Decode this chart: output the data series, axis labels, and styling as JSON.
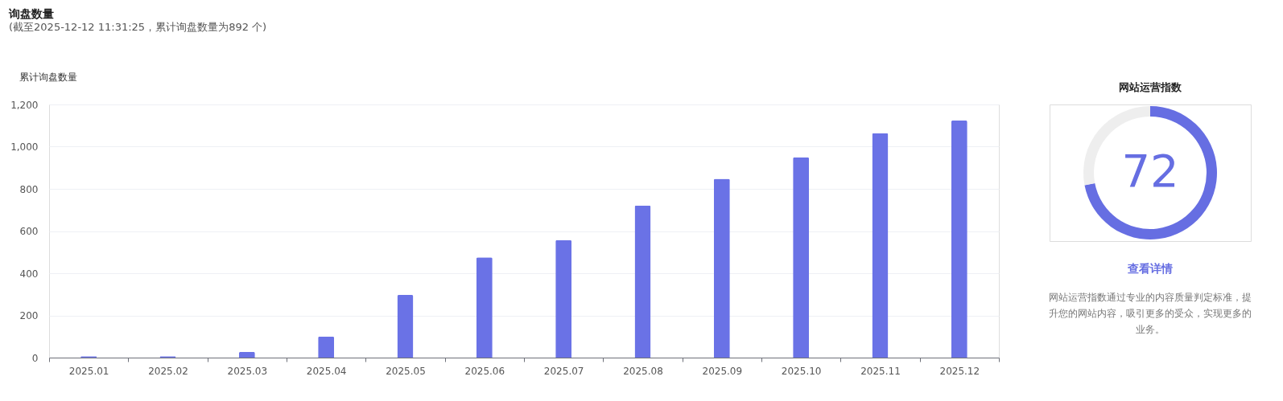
{
  "chart_data": [
    {
      "type": "bar",
      "title": "询盘数量",
      "subtitle": "(截至2025-12-12 11:31:25，累计询盘数量为892 个)",
      "ylabel": "累计询盘数量",
      "categories": [
        "2025.01",
        "2025.02",
        "2025.03",
        "2025.04",
        "2025.05",
        "2025.06",
        "2025.07",
        "2025.08",
        "2025.09",
        "2025.10",
        "2025.11",
        "2025.12"
      ],
      "values": [
        7,
        7,
        27,
        100,
        297,
        475,
        557,
        721,
        848,
        950,
        1064,
        1124
      ],
      "color": "#6a72e6",
      "ylim": [
        0,
        1200
      ],
      "yticks": [
        0,
        {
          "value": 200,
          "label": "200"
        },
        {
          "value": 400,
          "label": "400"
        },
        {
          "value": 600,
          "label": "600"
        },
        {
          "value": 800,
          "label": "800"
        },
        {
          "value": 1000,
          "label": "1,000"
        },
        {
          "value": 1200,
          "label": "1,200"
        }
      ],
      "grid": "y"
    },
    {
      "type": "donut",
      "title": "网站运营指数",
      "categories": [
        null,
        null
      ],
      "values": [
        72,
        28
      ],
      "colors": [
        "#666ee2",
        "#eeeeee"
      ],
      "annotations": [
        "72",
        "查看详情",
        "网站运营指数通过专业的内容质量判定标准，提升您的网站内容，吸引更多的受众，实现更多的业务。"
      ]
    }
  ]
}
